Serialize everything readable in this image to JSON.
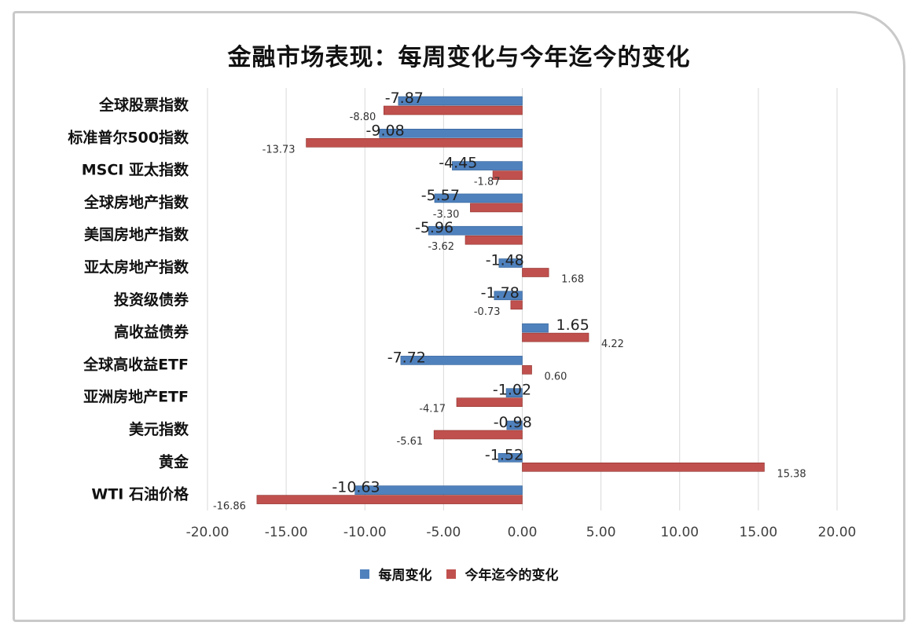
{
  "chart_data": {
    "type": "bar",
    "orientation": "horizontal",
    "title": "金融市场表现：每周变化与今年迄今的变化",
    "categories": [
      "全球股票指数",
      "标准普尔500指数",
      "MSCI 亚太指数",
      "全球房地产指数",
      "美国房地产指数",
      "亚太房地产指数",
      "投资级债券",
      "高收益债券",
      "全球高收益ETF",
      "亚洲房地产ETF",
      "美元指数",
      "黄金",
      "WTI 石油价格"
    ],
    "series": [
      {
        "name": "每周变化",
        "color": "#4f81bd",
        "values": [
          -7.87,
          -9.08,
          -4.45,
          -5.57,
          -5.96,
          -1.48,
          -1.78,
          1.65,
          -7.72,
          -1.02,
          -0.98,
          -1.52,
          -10.63
        ],
        "labels": [
          "-7.87",
          "-9.08",
          "-4.45",
          "-5.57",
          "-5.96",
          "-1.48",
          "-1.78",
          "1.65",
          "-7.72",
          "-1.02",
          "-0.98",
          "-1.52",
          "-10.63"
        ]
      },
      {
        "name": "今年迄今的变化",
        "color": "#c0504d",
        "values": [
          -8.8,
          -13.73,
          -1.87,
          -3.3,
          -3.62,
          1.68,
          -0.73,
          4.22,
          0.6,
          -4.17,
          -5.61,
          15.38,
          -16.86
        ],
        "labels": [
          "-8.80",
          "-13.73",
          "-1.87",
          "-3.30",
          "-3.62",
          "1.68",
          "-0.73",
          "4.22",
          "0.60",
          "-4.17",
          "-5.61",
          "15.38",
          "-16.86"
        ]
      }
    ],
    "xlim": [
      -20,
      20
    ],
    "xticks": [
      "-20.00",
      "-15.00",
      "-10.00",
      "-5.00",
      "0.00",
      "5.00",
      "10.00",
      "15.00",
      "20.00"
    ],
    "grid": true,
    "legend": "bottom"
  }
}
